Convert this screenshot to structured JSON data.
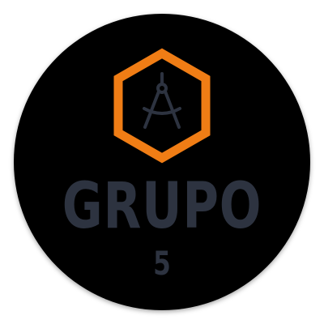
{
  "badge": {
    "title": "GRUPO",
    "number": "5",
    "icon": "compass-icon",
    "colors": {
      "background": "#000000",
      "hexagon": "#f07d15",
      "text": "#2d3340",
      "icon": "#2d3340"
    }
  }
}
